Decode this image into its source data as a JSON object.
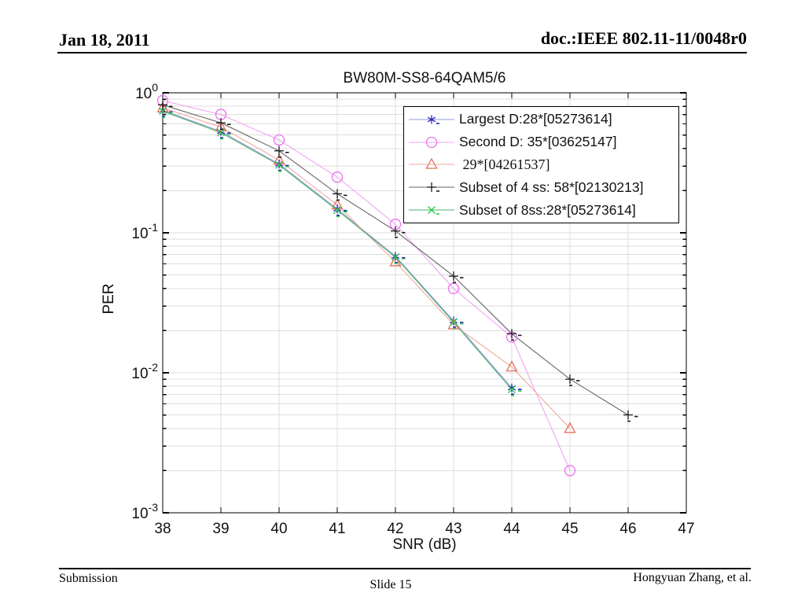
{
  "header": {
    "date": "Jan 18, 2011",
    "doc_number": "doc.:IEEE 802.11-11/0048r0"
  },
  "footer": {
    "left": "Submission",
    "center": "Slide 15",
    "right": "Hongyuan Zhang, et al."
  },
  "chart_data": {
    "type": "line",
    "title": "BW80M-SS8-64QAM5/6",
    "xlabel": "SNR (dB)",
    "ylabel": "PER",
    "xlim": [
      38,
      47
    ],
    "ylim": [
      0.001,
      1
    ],
    "y_scale": "log",
    "x_ticks": [
      38,
      39,
      40,
      41,
      42,
      43,
      44,
      45,
      46,
      47
    ],
    "y_tick_exponents": [
      0,
      -1,
      -2,
      -3
    ],
    "grid": true,
    "grid_color": "#dcdcdc",
    "frame_color": "#000000",
    "legend_position": "top-right-inside",
    "series": [
      {
        "label": "Largest D:28*[05273614]",
        "marker": "asterisk",
        "marker_color": "#2323bd",
        "line_color": "#9a9ade",
        "x": [
          38,
          39,
          40,
          41,
          42,
          43,
          44
        ],
        "y": [
          0.75,
          0.53,
          0.31,
          0.148,
          0.068,
          0.0235,
          0.0078
        ]
      },
      {
        "label": "Second D: 35*[03625147]",
        "marker": "circle",
        "marker_color": "#ee6fee",
        "line_color": "#f2a4f2",
        "x": [
          38,
          39,
          40,
          41,
          42,
          43,
          44,
          45
        ],
        "y": [
          0.88,
          0.7,
          0.46,
          0.25,
          0.115,
          0.04,
          0.018,
          0.002
        ]
      },
      {
        "label": " 29*[04261537]",
        "marker": "triangle-up",
        "marker_color": "#e4705c",
        "line_color": "#edaa9b",
        "serif_label": true,
        "x": [
          38,
          39,
          40,
          41,
          42,
          43,
          44,
          45
        ],
        "y": [
          0.78,
          0.57,
          0.33,
          0.158,
          0.062,
          0.022,
          0.011,
          0.004
        ]
      },
      {
        "label": "Subset of 4 ss: 58*[02130213]",
        "marker": "plus",
        "marker_color": "#1a1a1a",
        "line_color": "#666666",
        "x": [
          38,
          39,
          40,
          41,
          42,
          43,
          44,
          45,
          46
        ],
        "y": [
          0.82,
          0.61,
          0.385,
          0.19,
          0.103,
          0.049,
          0.019,
          0.009,
          0.005
        ]
      },
      {
        "label": "Subset of 8ss:28*[05273614]",
        "marker": "x",
        "marker_color": "#2ec84e",
        "line_color": "#46b468",
        "x": [
          38,
          39,
          40,
          41,
          42,
          43,
          44
        ],
        "y": [
          0.74,
          0.52,
          0.305,
          0.145,
          0.067,
          0.023,
          0.0076
        ]
      }
    ]
  }
}
